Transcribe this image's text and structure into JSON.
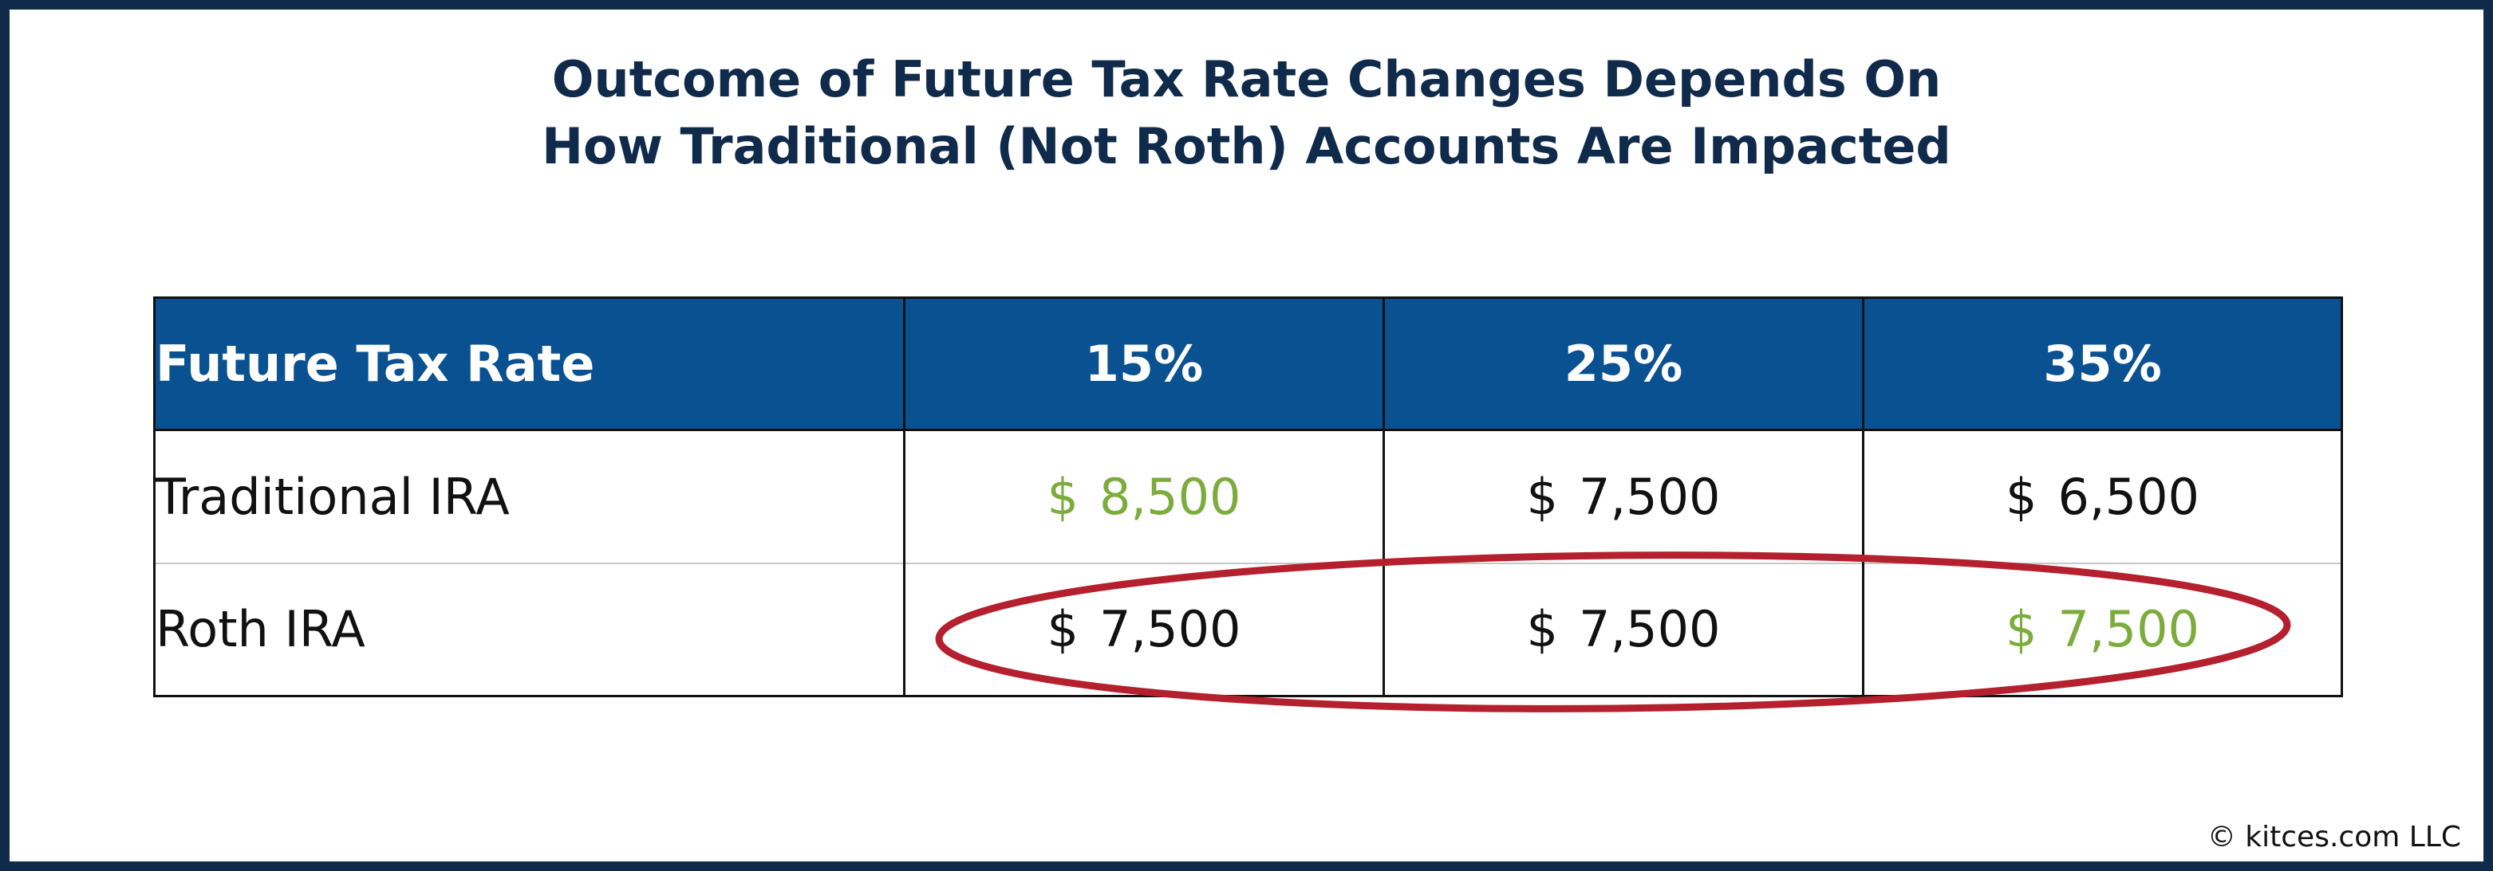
{
  "title_lines": [
    "Outcome of Future Tax Rate Changes Depends On",
    "How Traditional (Not Roth) Accounts Are Impacted"
  ],
  "table": {
    "header_label": "Future Tax Rate",
    "rates": [
      "15%",
      "25%",
      "35%"
    ],
    "rows": [
      {
        "label": "Traditional IRA",
        "cells": [
          {
            "currency": "$",
            "amount": "8,500",
            "highlight": true
          },
          {
            "currency": "$",
            "amount": "7,500",
            "highlight": false
          },
          {
            "currency": "$",
            "amount": "6,500",
            "highlight": false
          }
        ]
      },
      {
        "label": "Roth IRA",
        "cells": [
          {
            "currency": "$",
            "amount": "7,500",
            "highlight": false
          },
          {
            "currency": "$",
            "amount": "7,500",
            "highlight": false
          },
          {
            "currency": "$",
            "amount": "7,500",
            "highlight": true
          }
        ]
      }
    ]
  },
  "colors": {
    "frame": "#0f2a4a",
    "title": "#0f2a4a",
    "header_bg": "#0a5192",
    "highlight_text": "#7cac3c",
    "ellipse": "#b5202e"
  },
  "credit": "© kitces.com LLC"
}
